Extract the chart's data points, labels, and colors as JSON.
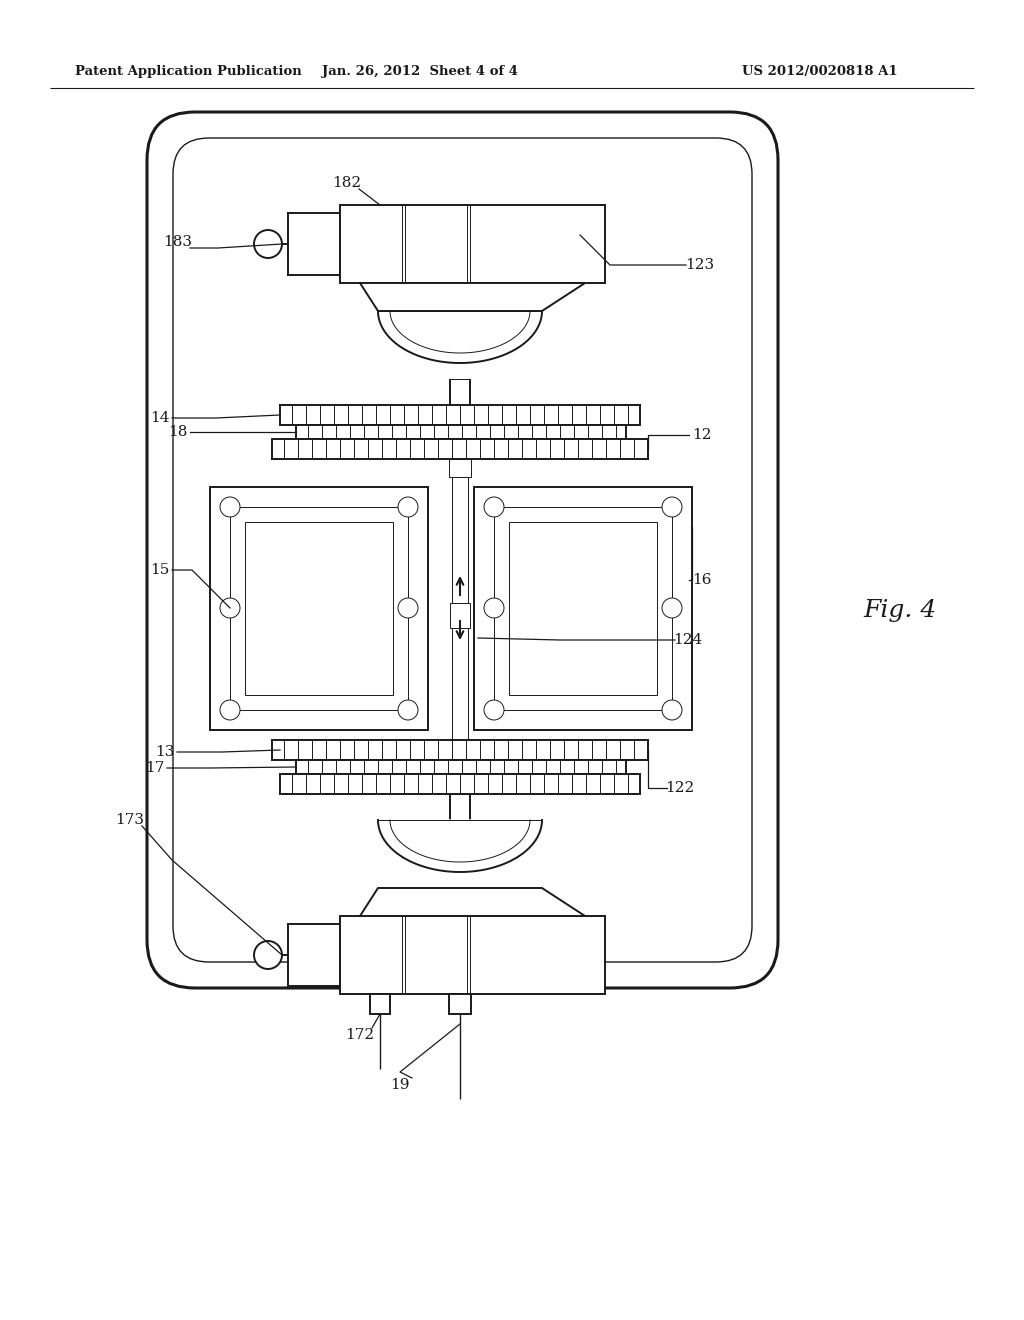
{
  "bg_color": "#ffffff",
  "line_color": "#1a1a1a",
  "header_left": "Patent Application Publication",
  "header_center": "Jan. 26, 2012  Sheet 4 of 4",
  "header_right": "US 2012/0020818 A1",
  "fig_label": "Fig. 4"
}
